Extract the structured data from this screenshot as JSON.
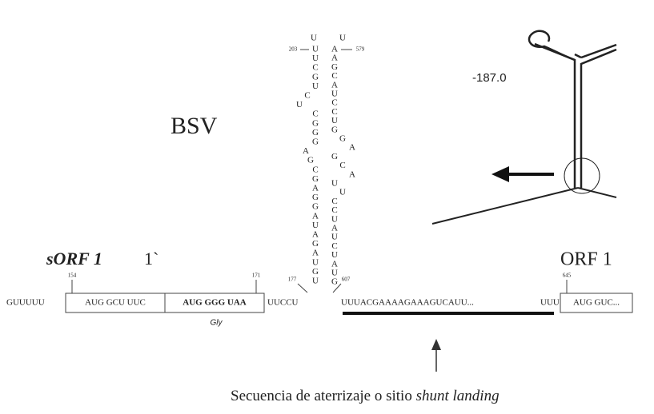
{
  "labels": {
    "bsv": "BSV",
    "sorf": "sORF 1",
    "sorf_prime": "1`",
    "orf": "ORF 1",
    "energy": "-187.0"
  },
  "sequence": {
    "lead": "GUUUUU",
    "box1": "AUG GCU UUC",
    "box2": "AUG GGG UAA",
    "gly": "Gly",
    "spacer": "UUCCU",
    "landing": "UUUACGAAAAGAAAGUCAUU...",
    "pre_orf": "UUU",
    "orf_box": "AUG GUC..."
  },
  "positions": {
    "p154": "154",
    "p171": "171",
    "p177": "177",
    "p607": "607",
    "p645": "645",
    "p203": "203",
    "p579": "579"
  },
  "stem": {
    "loop": [
      "U",
      "U"
    ],
    "left": [
      "U",
      "U",
      "C",
      "G",
      "U",
      "C",
      "U",
      "C",
      "G",
      "G",
      "G",
      "A",
      "G",
      "C",
      "G",
      "A",
      "G",
      "G",
      "A",
      "U",
      "A",
      "G",
      "A",
      "U",
      "G",
      "U"
    ],
    "right": [
      "A",
      "A",
      "G",
      "C",
      "A",
      "U",
      "C",
      "C",
      "U",
      "G",
      "G",
      "A",
      "G",
      "C",
      "A",
      "U",
      "U",
      "C",
      "C",
      "U",
      "A",
      "U",
      "C",
      "U",
      "A",
      "U",
      "G"
    ]
  },
  "caption": {
    "main": "Secuencia de aterrizaje o sitio",
    "italic": "shunt landing"
  }
}
